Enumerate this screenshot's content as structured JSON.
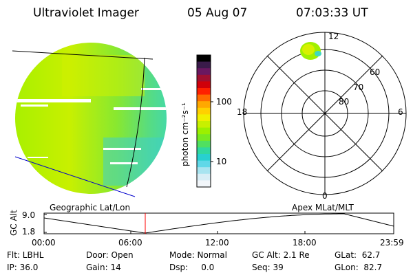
{
  "header": {
    "instrument": "Ultraviolet Imager",
    "date": "05 Aug 07",
    "time": "07:03:33 UT"
  },
  "colorbar": {
    "unit_label": "photon cm⁻²s⁻¹",
    "ticks": [
      "100",
      "10"
    ],
    "colors": [
      "#000000",
      "#3a1b4a",
      "#6a1860",
      "#a01030",
      "#d0000a",
      "#ff2000",
      "#ff6a00",
      "#ffa800",
      "#ffd000",
      "#f0f000",
      "#c8f000",
      "#9cf000",
      "#78ea20",
      "#50e060",
      "#30d8a0",
      "#28d0d0",
      "#60d8e8",
      "#a8e4f0",
      "#d8eef6",
      "#f2f6fa"
    ]
  },
  "map": {
    "label": "Geographic Lat/Lon"
  },
  "polar": {
    "label": "Apex MLat/MLT",
    "mlt_labels": {
      "top": "12",
      "bottom": "0",
      "left": "18",
      "right": "6"
    },
    "lat_labels": [
      "60",
      "70",
      "80"
    ]
  },
  "timeline": {
    "ylabel": "GC Alt",
    "yticks": [
      "9.0",
      "1.8"
    ],
    "xticks": [
      "00:00",
      "06:00",
      "12:00",
      "18:00",
      "23:59"
    ],
    "marker_color": "#ff0000"
  },
  "footer": {
    "row1": [
      "Flt: LBHL",
      "Door: Open",
      "Mode: Normal",
      "GC Alt: 2.1 Re",
      "GLat:  62.7"
    ],
    "row2": [
      "IP: 36.0",
      "Gain: 14",
      "Dsp:     0.0",
      "Seq: 39",
      "GLon:  82.7"
    ]
  }
}
